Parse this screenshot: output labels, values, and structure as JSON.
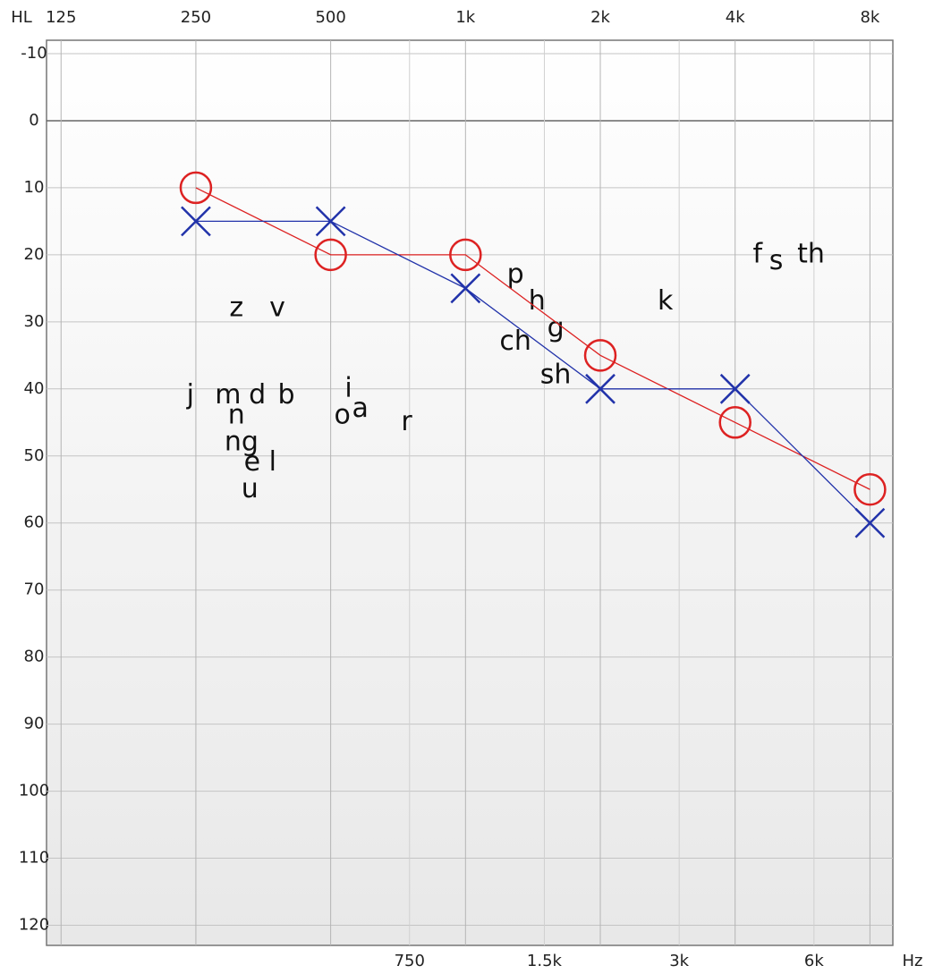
{
  "chart_data": {
    "type": "line",
    "y_label": "HL",
    "x_label": "Hz",
    "xscale": "log",
    "xlim": [
      116,
      9000
    ],
    "ylim": [
      -12,
      123
    ],
    "yinverted": true,
    "grid": true,
    "xticks": [
      125,
      250,
      500,
      {
        "value": 1000,
        "label": "1k"
      },
      {
        "value": 2000,
        "label": "2k"
      },
      {
        "value": 4000,
        "label": "4k"
      },
      {
        "value": 8000,
        "label": "8k"
      }
    ],
    "xticks_minor": [
      750,
      {
        "value": 1500,
        "label": "1.5k"
      },
      {
        "value": 3000,
        "label": "3k"
      },
      {
        "value": 6000,
        "label": "6k"
      }
    ],
    "yticks": [
      -10,
      0,
      10,
      20,
      30,
      40,
      50,
      60,
      70,
      80,
      90,
      100,
      110,
      120
    ],
    "x": [
      250,
      500,
      1000,
      2000,
      4000,
      8000
    ],
    "series": [
      {
        "color": "#dd2222",
        "marker": "circle",
        "values": [
          10,
          20,
          20,
          35,
          45,
          55
        ]
      },
      {
        "color": "#2233aa",
        "marker": "x",
        "values": [
          15,
          15,
          25,
          40,
          40,
          60
        ]
      }
    ],
    "annotations": [
      {
        "text": "z",
        "x": 308,
        "y": 28
      },
      {
        "text": "v",
        "x": 380,
        "y": 28
      },
      {
        "text": "j",
        "x": 243,
        "y": 41
      },
      {
        "text": "m",
        "x": 295,
        "y": 41
      },
      {
        "text": "d",
        "x": 343,
        "y": 41
      },
      {
        "text": "b",
        "x": 398,
        "y": 41
      },
      {
        "text": "n",
        "x": 308,
        "y": 44
      },
      {
        "text": "ng",
        "x": 316,
        "y": 48
      },
      {
        "text": "e",
        "x": 334,
        "y": 51
      },
      {
        "text": "l",
        "x": 371,
        "y": 51
      },
      {
        "text": "u",
        "x": 330,
        "y": 55
      },
      {
        "text": "i",
        "x": 548,
        "y": 40
      },
      {
        "text": "o",
        "x": 531,
        "y": 44
      },
      {
        "text": "a",
        "x": 582,
        "y": 43
      },
      {
        "text": "r",
        "x": 739,
        "y": 45
      },
      {
        "text": "p",
        "x": 1293,
        "y": 23
      },
      {
        "text": "h",
        "x": 1444,
        "y": 27
      },
      {
        "text": "g",
        "x": 1590,
        "y": 31
      },
      {
        "text": "ch",
        "x": 1293,
        "y": 33
      },
      {
        "text": "sh",
        "x": 1590,
        "y": 38
      },
      {
        "text": "k",
        "x": 2794,
        "y": 27
      },
      {
        "text": "f",
        "x": 4490,
        "y": 20
      },
      {
        "text": "s",
        "x": 4940,
        "y": 21
      },
      {
        "text": "th",
        "x": 5910,
        "y": 20
      }
    ]
  }
}
